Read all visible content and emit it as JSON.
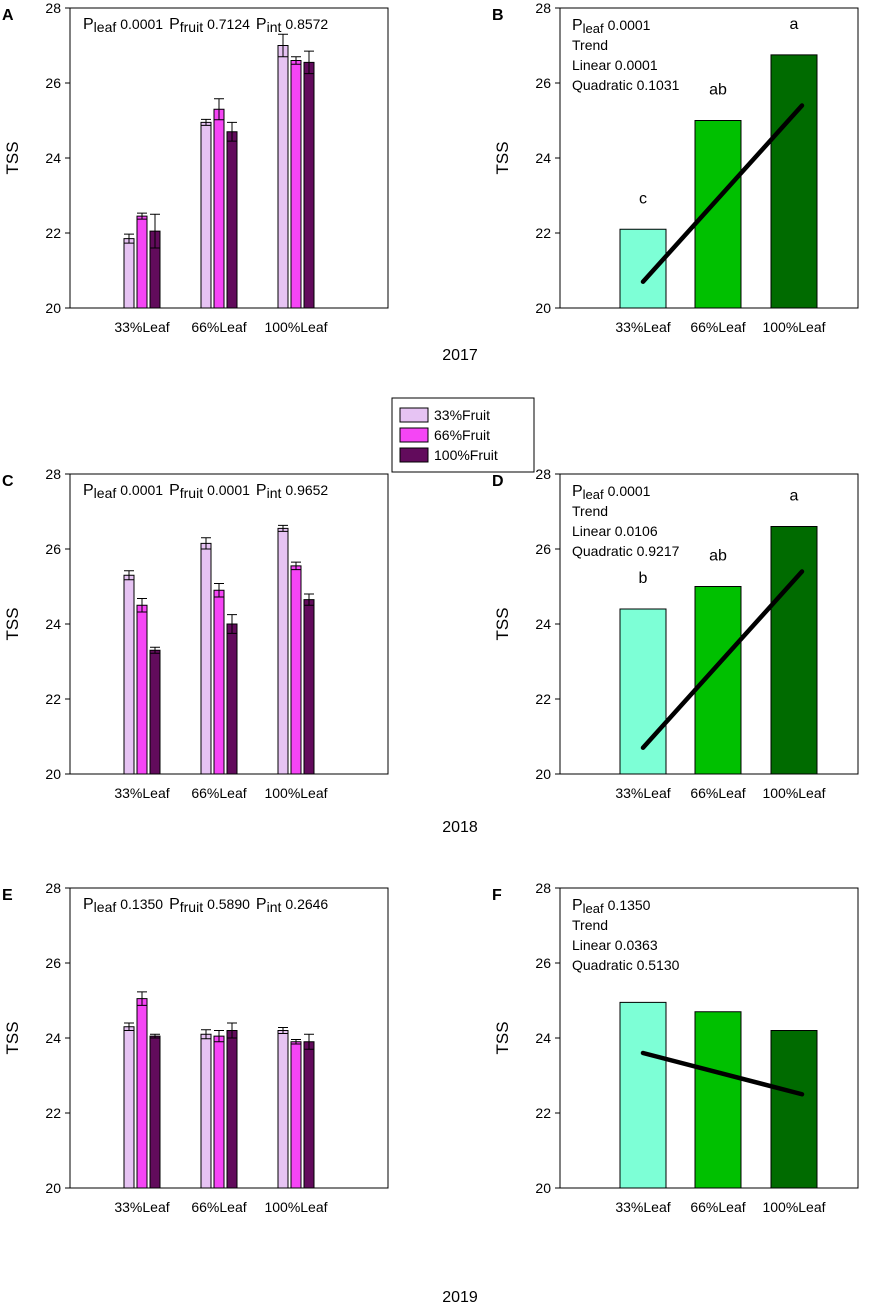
{
  "figure": {
    "years": [
      "2017",
      "2018",
      "2019"
    ],
    "legend": [
      "33%Fruit",
      "66%Fruit",
      "100%Fruit"
    ]
  },
  "colors": {
    "fruit": [
      "#e6c3f3",
      "#f545f5",
      "#620b5c"
    ],
    "leaf": [
      "#7dffd6",
      "#00c000",
      "#006b00"
    ],
    "axis": "#000000"
  },
  "chart_data": [
    {
      "panel": "A",
      "type": "bar",
      "year": "2017",
      "ylabel": "TSS",
      "ylim": [
        20,
        28
      ],
      "yticks": [
        20,
        22,
        24,
        26,
        28
      ],
      "categories": [
        "33%Leaf",
        "66%Leaf",
        "100%Leaf"
      ],
      "series": [
        {
          "name": "33%Fruit",
          "values": [
            21.85,
            24.95,
            27.0
          ],
          "errors": [
            0.12,
            0.08,
            0.3
          ]
        },
        {
          "name": "66%Fruit",
          "values": [
            22.45,
            25.3,
            26.6
          ],
          "errors": [
            0.08,
            0.28,
            0.1
          ]
        },
        {
          "name": "100%Fruit",
          "values": [
            22.05,
            24.7,
            26.55
          ],
          "errors": [
            0.45,
            0.25,
            0.3
          ]
        }
      ],
      "pvalues": [
        {
          "label": "P",
          "sub": "leaf",
          "value": "0.0001"
        },
        {
          "label": "P",
          "sub": "fruit",
          "value": "0.7124"
        },
        {
          "label": "P",
          "sub": "int",
          "value": "0.8572"
        }
      ]
    },
    {
      "panel": "B",
      "type": "bar",
      "year": "2017",
      "ylabel": "TSS",
      "ylim": [
        20,
        28
      ],
      "yticks": [
        20,
        22,
        24,
        26,
        28
      ],
      "categories": [
        "33%Leaf",
        "66%Leaf",
        "100%Leaf"
      ],
      "values": [
        22.1,
        25.0,
        26.75
      ],
      "letters": [
        "c",
        "ab",
        "a"
      ],
      "trend": [
        20.7,
        25.4
      ],
      "stats": {
        "p_label": "P",
        "p_sub": "leaf",
        "p_value": "0.0001",
        "trend": "Trend",
        "linear": "Linear 0.0001",
        "quadratic": "Quadratic 0.1031"
      }
    },
    {
      "panel": "C",
      "type": "bar",
      "year": "2018",
      "ylabel": "TSS",
      "ylim": [
        20,
        28
      ],
      "yticks": [
        20,
        22,
        24,
        26,
        28
      ],
      "categories": [
        "33%Leaf",
        "66%Leaf",
        "100%Leaf"
      ],
      "series": [
        {
          "name": "33%Fruit",
          "values": [
            25.3,
            26.15,
            26.55
          ],
          "errors": [
            0.12,
            0.15,
            0.08
          ]
        },
        {
          "name": "66%Fruit",
          "values": [
            24.5,
            24.9,
            25.55
          ],
          "errors": [
            0.18,
            0.18,
            0.1
          ]
        },
        {
          "name": "100%Fruit",
          "values": [
            23.3,
            24.0,
            24.65
          ],
          "errors": [
            0.08,
            0.25,
            0.15
          ]
        }
      ],
      "pvalues": [
        {
          "label": "P",
          "sub": "leaf",
          "value": "0.0001"
        },
        {
          "label": "P",
          "sub": "fruit",
          "value": "0.0001"
        },
        {
          "label": "P",
          "sub": "int",
          "value": "0.9652"
        }
      ]
    },
    {
      "panel": "D",
      "type": "bar",
      "year": "2018",
      "ylabel": "TSS",
      "ylim": [
        20,
        28
      ],
      "yticks": [
        20,
        22,
        24,
        26,
        28
      ],
      "categories": [
        "33%Leaf",
        "66%Leaf",
        "100%Leaf"
      ],
      "values": [
        24.4,
        25.0,
        26.6
      ],
      "letters": [
        "b",
        "ab",
        "a"
      ],
      "trend": [
        20.7,
        25.4
      ],
      "stats": {
        "p_label": "P",
        "p_sub": "leaf",
        "p_value": "0.0001",
        "trend": "Trend",
        "linear": "Linear 0.0106",
        "quadratic": "Quadratic 0.9217"
      }
    },
    {
      "panel": "E",
      "type": "bar",
      "year": "2019",
      "ylabel": "TSS",
      "ylim": [
        20,
        28
      ],
      "yticks": [
        20,
        22,
        24,
        26,
        28
      ],
      "categories": [
        "33%Leaf",
        "66%Leaf",
        "100%Leaf"
      ],
      "series": [
        {
          "name": "33%Fruit",
          "values": [
            24.3,
            24.1,
            24.2
          ],
          "errors": [
            0.1,
            0.12,
            0.08
          ]
        },
        {
          "name": "66%Fruit",
          "values": [
            25.05,
            24.05,
            23.9
          ],
          "errors": [
            0.18,
            0.15,
            0.06
          ]
        },
        {
          "name": "100%Fruit",
          "values": [
            24.05,
            24.2,
            23.9
          ],
          "errors": [
            0.05,
            0.2,
            0.2
          ]
        }
      ],
      "pvalues": [
        {
          "label": "P",
          "sub": "leaf",
          "value": "0.1350"
        },
        {
          "label": "P",
          "sub": "fruit",
          "value": "0.5890"
        },
        {
          "label": "P",
          "sub": "int",
          "value": "0.2646"
        }
      ]
    },
    {
      "panel": "F",
      "type": "bar",
      "year": "2019",
      "ylabel": "TSS",
      "ylim": [
        20,
        28
      ],
      "yticks": [
        20,
        22,
        24,
        26,
        28
      ],
      "categories": [
        "33%Leaf",
        "66%Leaf",
        "100%Leaf"
      ],
      "values": [
        24.95,
        24.7,
        24.2
      ],
      "letters": [],
      "trend": [
        23.6,
        22.5
      ],
      "stats": {
        "p_label": "P",
        "p_sub": "leaf",
        "p_value": "0.1350",
        "trend": "Trend",
        "linear": "Linear 0.0363",
        "quadratic": "Quadratic 0.5130"
      }
    }
  ]
}
